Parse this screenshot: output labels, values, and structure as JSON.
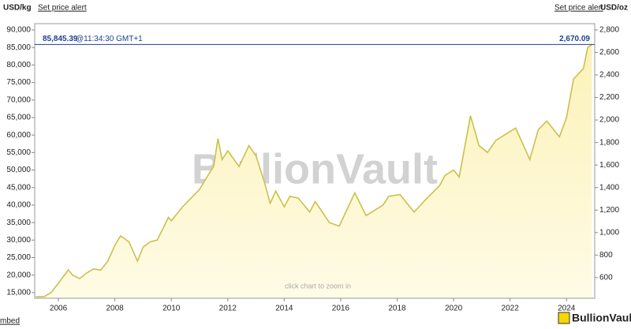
{
  "chart_data": {
    "type": "line",
    "left_unit": "USD/kg",
    "right_unit": "USD/oz",
    "alert_left": "Set price alert",
    "alert_right": "Set price alert",
    "current": {
      "value": 85845.39,
      "label": "85,845.39"
    },
    "current_time": "@11:34:30 GMT+1",
    "current_oz": {
      "value": 2670.09,
      "label": "2,670.09"
    },
    "watermark": "BullionVault",
    "hint": "click chart to zoom in",
    "embed": "mbed",
    "logo": "BullionVault",
    "x": [
      2005.2,
      2005.5,
      2005.75,
      2006.0,
      2006.35,
      2006.5,
      2006.75,
      2007.0,
      2007.25,
      2007.5,
      2007.75,
      2008.0,
      2008.2,
      2008.5,
      2008.8,
      2009.0,
      2009.25,
      2009.5,
      2009.9,
      2010.0,
      2010.4,
      2010.7,
      2011.0,
      2011.3,
      2011.5,
      2011.65,
      2011.8,
      2012.0,
      2012.4,
      2012.75,
      2013.0,
      2013.3,
      2013.5,
      2013.7,
      2014.0,
      2014.2,
      2014.5,
      2014.9,
      2015.1,
      2015.6,
      2015.95,
      2016.5,
      2016.9,
      2017.5,
      2017.7,
      2018.1,
      2018.6,
      2019.0,
      2019.5,
      2019.7,
      2020.0,
      2020.2,
      2020.6,
      2020.9,
      2021.2,
      2021.5,
      2022.2,
      2022.7,
      2023.0,
      2023.3,
      2023.75,
      2024.0,
      2024.25,
      2024.6,
      2024.75,
      2024.9
    ],
    "series": [
      {
        "color": "#c9c14a",
        "values": [
          13800,
          13900,
          15100,
          17700,
          21500,
          20000,
          19000,
          20600,
          21800,
          21400,
          24000,
          28500,
          31200,
          29500,
          24000,
          28000,
          29500,
          30000,
          36500,
          35500,
          39500,
          42000,
          44500,
          48500,
          51000,
          59000,
          53000,
          55500,
          51000,
          57000,
          54000,
          46500,
          40500,
          44000,
          39500,
          42500,
          42000,
          38000,
          41000,
          35000,
          34000,
          43500,
          37000,
          40000,
          42500,
          43000,
          38000,
          41500,
          45500,
          48500,
          50000,
          48000,
          65500,
          57000,
          55000,
          58500,
          62000,
          53000,
          61500,
          64000,
          59500,
          65000,
          76000,
          79000,
          85000,
          85845
        ]
      }
    ],
    "xlim": [
      2005.16,
      2025.0
    ],
    "xticks": [
      2006,
      2008,
      2010,
      2012,
      2014,
      2016,
      2018,
      2020,
      2022,
      2024
    ],
    "ylim": [
      13400,
      91800
    ],
    "yticks": [
      {
        "value": 15000,
        "label": "15,000"
      },
      {
        "value": 20000,
        "label": "20,000"
      },
      {
        "value": 25000,
        "label": "25,000"
      },
      {
        "value": 30000,
        "label": "30,000"
      },
      {
        "value": 35000,
        "label": "35,000"
      },
      {
        "value": 40000,
        "label": "40,000"
      },
      {
        "value": 45000,
        "label": "45,000"
      },
      {
        "value": 50000,
        "label": "50,000"
      },
      {
        "value": 55000,
        "label": "55,000"
      },
      {
        "value": 60000,
        "label": "60,000"
      },
      {
        "value": 65000,
        "label": "65,000"
      },
      {
        "value": 70000,
        "label": "70,000"
      },
      {
        "value": 75000,
        "label": "75,000"
      },
      {
        "value": 80000,
        "label": "80,000"
      },
      {
        "value": 85000,
        "label": "85,000"
      },
      {
        "value": 90000,
        "label": "90,000"
      }
    ],
    "y2lim": [
      416.8,
      2855.4
    ],
    "y2ticks": [
      600,
      800,
      {
        "value": 1000,
        "label": "1,000"
      },
      {
        "value": 1200,
        "label": "1,200"
      },
      {
        "value": 1400,
        "label": "1,400"
      },
      {
        "value": 1600,
        "label": "1,600"
      },
      {
        "value": 1800,
        "label": "1,800"
      },
      {
        "value": 2000,
        "label": "2,000"
      },
      {
        "value": 2200,
        "label": "2,200"
      },
      {
        "value": 2400,
        "label": "2,400"
      },
      {
        "value": 2600,
        "label": "2,600"
      },
      {
        "value": 2800,
        "label": "2,800"
      }
    ]
  }
}
